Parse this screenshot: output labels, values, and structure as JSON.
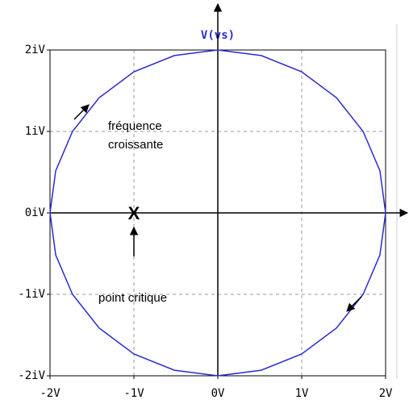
{
  "chart_data": {
    "type": "line",
    "title": "V(vs)",
    "series": [
      {
        "name": "V(vs)",
        "color": "#2b2bd0",
        "x": [
          2,
          1.932,
          1.732,
          1.414,
          1,
          0.518,
          0,
          -0.518,
          -1,
          -1.414,
          -1.732,
          -1.932,
          -2,
          -1.932,
          -1.732,
          -1.414,
          -1,
          -0.518,
          0,
          0.518,
          1,
          1.414,
          1.732,
          1.932,
          2
        ],
        "values": [
          0,
          0.518,
          1,
          1.414,
          1.732,
          1.932,
          2,
          1.932,
          1.732,
          1.414,
          1,
          0.518,
          0,
          -0.518,
          -1,
          -1.414,
          -1.732,
          -1.932,
          -2,
          -1.932,
          -1.732,
          -1.414,
          -1,
          -0.518,
          0
        ]
      }
    ],
    "xlim": [
      -2,
      2
    ],
    "ylim": [
      -2,
      2
    ],
    "xticks": [
      {
        "value": -2,
        "label": "-2V"
      },
      {
        "value": -1,
        "label": "-1V"
      },
      {
        "value": 0,
        "label": "0V"
      },
      {
        "value": 1,
        "label": "1V"
      },
      {
        "value": 2,
        "label": "2V"
      }
    ],
    "yticks": [
      {
        "value": -2,
        "label": "-2iV"
      },
      {
        "value": -1,
        "label": "-1iV"
      },
      {
        "value": 0,
        "label": "0iV"
      },
      {
        "value": 1,
        "label": "1iV"
      },
      {
        "value": 2,
        "label": "2iV"
      }
    ],
    "grid": true,
    "annotations": [
      "fréquence",
      "croissante",
      "point critique",
      "X"
    ]
  }
}
